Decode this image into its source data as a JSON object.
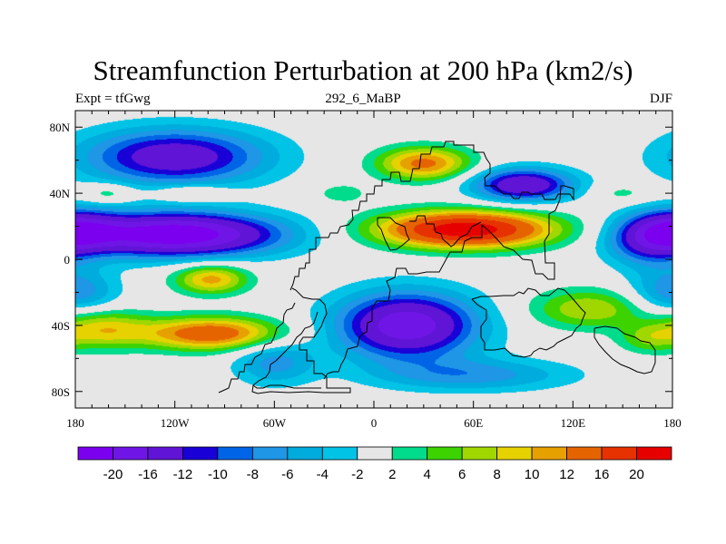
{
  "header": {
    "title": "Streamfunction Perturbation at 200 hPa (km2/s)",
    "left": "Expt = tfGwg",
    "center": "292_6_MaBP",
    "right": "DJF"
  },
  "map_data": {
    "type": "contour-map",
    "projection": "cylindrical-equidistant",
    "lon_range": [
      -180,
      180
    ],
    "lat_range": [
      -90,
      90
    ],
    "lon_ticks": [
      {
        "value": -180,
        "label": "180"
      },
      {
        "value": -120,
        "label": "120W"
      },
      {
        "value": -60,
        "label": "60W"
      },
      {
        "value": 0,
        "label": "0"
      },
      {
        "value": 60,
        "label": "60E"
      },
      {
        "value": 120,
        "label": "120E"
      },
      {
        "value": 180,
        "label": "180"
      }
    ],
    "lat_ticks": [
      {
        "value": 80,
        "label": "80N"
      },
      {
        "value": 40,
        "label": "40N"
      },
      {
        "value": 0,
        "label": "0"
      },
      {
        "value": -40,
        "label": "40S"
      },
      {
        "value": -80,
        "label": "80S"
      }
    ],
    "background_color": "#e6e6e6",
    "features": [
      {
        "name": "north-pacific-low",
        "lon": -120,
        "lat": 62,
        "sx": 55,
        "sy": 17,
        "amp": -15
      },
      {
        "name": "tropical-pacific-low",
        "lon": -120,
        "lat": 15,
        "sx": 62,
        "sy": 13,
        "amp": -24
      },
      {
        "name": "central-pacific-low-north",
        "lon": -180,
        "lat": 18,
        "sx": 25,
        "sy": 12,
        "amp": -12
      },
      {
        "name": "central-pacific-low-south",
        "lon": -180,
        "lat": -20,
        "sx": 25,
        "sy": 14,
        "amp": -8
      },
      {
        "name": "north-pacific-ridge",
        "lon": -160,
        "lat": 40,
        "sx": 16,
        "sy": 6,
        "amp": 4.5
      },
      {
        "name": "eastern-pacific-ridge",
        "lon": -110,
        "lat": 40,
        "sx": 22,
        "sy": 5,
        "amp": 5
      },
      {
        "name": "south-pacific-high",
        "lon": -98,
        "lat": -45,
        "sx": 42,
        "sy": 10,
        "amp": 15
      },
      {
        "name": "south-pacific-high-west",
        "lon": -165,
        "lat": -42,
        "sx": 28,
        "sy": 12,
        "amp": 9
      },
      {
        "name": "tropical-south-pacific-high",
        "lon": -98,
        "lat": -12,
        "sx": 22,
        "sy": 9,
        "amp": 11
      },
      {
        "name": "asian-subtropical-high",
        "lon": 55,
        "lat": 18,
        "sx": 52,
        "sy": 11,
        "amp": 23
      },
      {
        "name": "eurasian-high",
        "lon": 30,
        "lat": 58,
        "sx": 28,
        "sy": 10,
        "amp": 13
      },
      {
        "name": "siberian-low",
        "lon": 90,
        "lat": 45,
        "sx": 30,
        "sy": 10,
        "amp": -16
      },
      {
        "name": "atlantic-ridge",
        "lon": -20,
        "lat": 40,
        "sx": 18,
        "sy": 7,
        "amp": 3
      },
      {
        "name": "pacific-northwest-ridge",
        "lon": 150,
        "lat": 40,
        "sx": 18,
        "sy": 6,
        "amp": 3
      },
      {
        "name": "west-pacific-low",
        "lon": 165,
        "lat": 10,
        "sx": 25,
        "sy": 15,
        "amp": -9
      },
      {
        "name": "south-atlantic-indian-low",
        "lon": 20,
        "lat": -40,
        "sx": 42,
        "sy": 20,
        "amp": -19
      },
      {
        "name": "southern-ocean-low",
        "lon": -60,
        "lat": -62,
        "sx": 25,
        "sy": 14,
        "amp": -7
      },
      {
        "name": "southern-ocean-low-east",
        "lon": 60,
        "lat": -70,
        "sx": 60,
        "sy": 10,
        "amp": -7
      },
      {
        "name": "south-indian-high",
        "lon": 130,
        "lat": -30,
        "sx": 35,
        "sy": 12,
        "amp": 8
      },
      {
        "name": "south-pacific-high-east",
        "lon": 165,
        "lat": -48,
        "sx": 18,
        "sy": 9,
        "amp": 5
      }
    ],
    "colorbar": {
      "colors": [
        "#7b00ef",
        "#6f16e6",
        "#5f14d6",
        "#1900d6",
        "#0064e6",
        "#1f96e6",
        "#00abdd",
        "#00c3e6",
        "#e6e6e6",
        "#00dc8c",
        "#3cd300",
        "#a0d700",
        "#e6d200",
        "#e6a000",
        "#e66400",
        "#e63200",
        "#e60000"
      ],
      "levels": [
        -20,
        -16,
        -12,
        -10,
        -8,
        -6,
        -4,
        -2,
        2,
        4,
        6,
        8,
        10,
        12,
        16,
        20
      ],
      "tick_labels": [
        "-20",
        "-16",
        "-12",
        "-10",
        "-8",
        "-6",
        "-4",
        "-2",
        "2",
        "4",
        "6",
        "8",
        "10",
        "12",
        "16",
        "20"
      ]
    },
    "coastline_color": "#000000"
  }
}
